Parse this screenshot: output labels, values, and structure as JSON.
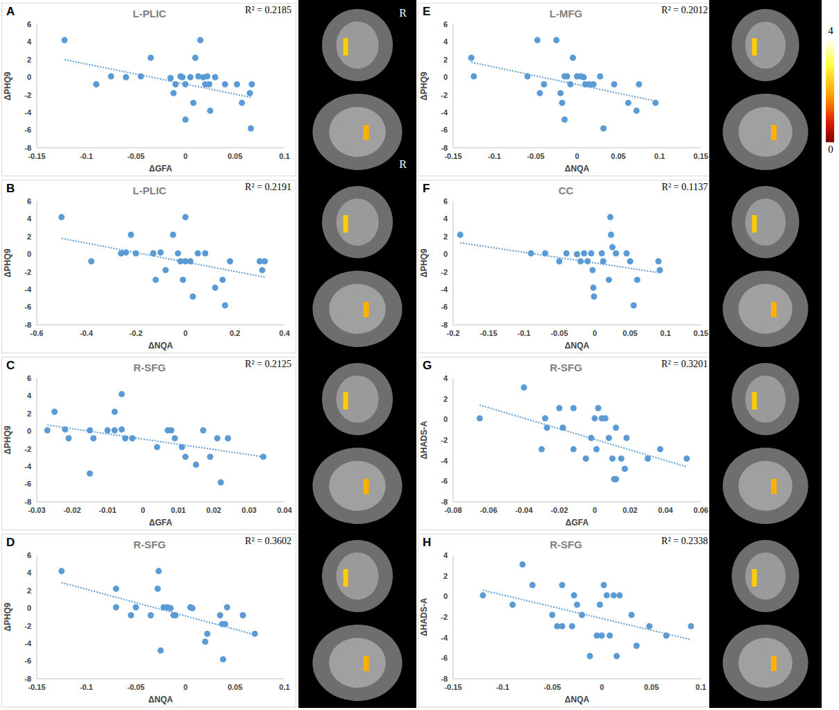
{
  "chart_data": [
    {
      "panel": "A",
      "type": "scatter",
      "title": "L-PLIC",
      "annotation": "R² = 0.2185",
      "xlabel": "ΔGFA",
      "ylabel": "ΔPHQ9",
      "color": "#5b9bd5",
      "x": [
        -0.122,
        -0.09,
        -0.075,
        -0.06,
        -0.045,
        -0.035,
        -0.015,
        -0.012,
        -0.01,
        -0.005,
        -0.003,
        0,
        0,
        0.005,
        0.008,
        0.01,
        0.013,
        0.015,
        0.018,
        0.02,
        0.022,
        0.024,
        0.025,
        0.03,
        0.04,
        0.052,
        0.057,
        0.065,
        0.067,
        0.066
      ],
      "y": [
        4.2,
        -0.8,
        0.1,
        0,
        0.1,
        2.2,
        -0.1,
        -1.8,
        -0.8,
        0.1,
        0,
        -0.8,
        -4.8,
        0,
        -2.9,
        2.2,
        0.1,
        4.2,
        0,
        -0.8,
        0.1,
        -0.8,
        -3.8,
        0,
        -0.8,
        -0.8,
        -2.9,
        -1.8,
        -0.8,
        -5.8
      ],
      "trendline": {
        "x": [
          -0.122,
          0.067
        ],
        "y": [
          2.0,
          -2.3
        ]
      },
      "xlim": [
        -0.15,
        0.1
      ],
      "xticks": [
        -0.15,
        -0.1,
        -0.05,
        0,
        0.05,
        0.1
      ],
      "ylim": [
        -8,
        6
      ],
      "yticks": [
        -8,
        -6,
        -4,
        -2,
        0,
        2,
        4,
        6
      ]
    },
    {
      "panel": "B",
      "type": "scatter",
      "title": "L-PLIC",
      "annotation": "R² = 0.2191",
      "xlabel": "ΔNQA",
      "ylabel": "ΔPHQ9",
      "color": "#5b9bd5",
      "x": [
        -0.5,
        -0.38,
        -0.26,
        -0.24,
        -0.22,
        -0.2,
        -0.13,
        -0.12,
        -0.1,
        -0.08,
        -0.05,
        -0.03,
        -0.02,
        0,
        0,
        -0.01,
        0.02,
        0.03,
        0.05,
        0.08,
        0.12,
        0.15,
        0.16,
        0.18,
        0.3,
        0.31,
        0.32
      ],
      "y": [
        4.2,
        -0.8,
        0.1,
        0.2,
        2.2,
        0.1,
        0.1,
        -2.9,
        0.2,
        -1.8,
        2.2,
        0.1,
        -0.8,
        -0.8,
        4.2,
        -2.9,
        -0.8,
        -4.8,
        0.1,
        0.1,
        -3.8,
        -2.9,
        -5.8,
        -0.8,
        -0.8,
        -1.8,
        -0.8
      ],
      "trendline": {
        "x": [
          -0.5,
          0.32
        ],
        "y": [
          1.8,
          -2.6
        ]
      },
      "xlim": [
        -0.6,
        0.4
      ],
      "xticks": [
        -0.6,
        -0.4,
        -0.2,
        0,
        0.2,
        0.4
      ],
      "ylim": [
        -8,
        6
      ],
      "yticks": [
        -8,
        -6,
        -4,
        -2,
        0,
        2,
        4,
        6
      ]
    },
    {
      "panel": "C",
      "type": "scatter",
      "title": "R-SFG",
      "annotation": "R² = 0.2125",
      "xlabel": "ΔGFA",
      "ylabel": "ΔPHQ9",
      "color": "#5b9bd5",
      "x": [
        -0.027,
        -0.025,
        -0.022,
        -0.021,
        -0.015,
        -0.015,
        -0.014,
        -0.01,
        -0.008,
        -0.008,
        -0.006,
        -0.006,
        -0.005,
        -0.003,
        0.004,
        0.007,
        0.008,
        0.009,
        0.011,
        0.012,
        0.015,
        0.017,
        0.019,
        0.021,
        0.022,
        0.024,
        0.034
      ],
      "y": [
        0.1,
        2.2,
        0.2,
        -0.8,
        0.1,
        -4.8,
        -0.8,
        0.1,
        2.2,
        0.1,
        4.2,
        0.2,
        -0.8,
        -0.8,
        -1.8,
        0.1,
        0.1,
        -0.8,
        -1.8,
        -2.9,
        -3.8,
        0.1,
        -2.9,
        -0.8,
        -5.8,
        -0.8,
        -2.9
      ],
      "trendline": {
        "x": [
          -0.027,
          0.034
        ],
        "y": [
          0.7,
          -2.9
        ]
      },
      "xlim": [
        -0.03,
        0.04
      ],
      "xticks": [
        -0.03,
        -0.02,
        -0.01,
        0,
        0.01,
        0.02,
        0.03,
        0.04
      ],
      "ylim": [
        -8,
        6
      ],
      "yticks": [
        -8,
        -6,
        -4,
        -2,
        0,
        2,
        4,
        6
      ]
    },
    {
      "panel": "D",
      "type": "scatter",
      "title": "R-SFG",
      "annotation": "R² = 0.3602",
      "xlabel": "ΔNQA",
      "ylabel": "ΔPHQ9",
      "color": "#5b9bd5",
      "x": [
        -0.125,
        -0.07,
        -0.07,
        -0.055,
        -0.05,
        -0.035,
        -0.028,
        -0.027,
        -0.025,
        -0.022,
        -0.018,
        -0.015,
        -0.012,
        -0.01,
        0.005,
        0.007,
        0.02,
        0.022,
        0.035,
        0.037,
        0.04,
        0.038,
        0.042,
        0.058,
        0.07
      ],
      "y": [
        4.2,
        2.2,
        0.1,
        -0.8,
        0.1,
        -0.8,
        2.2,
        4.2,
        -4.8,
        0.1,
        0.1,
        0,
        -0.8,
        -0.8,
        0.1,
        0,
        -3.8,
        -2.9,
        -0.8,
        -1.8,
        -1.8,
        -5.8,
        0.1,
        -0.8,
        -2.9
      ],
      "trendline": {
        "x": [
          -0.125,
          0.07
        ],
        "y": [
          2.9,
          -3.0
        ]
      },
      "xlim": [
        -0.15,
        0.1
      ],
      "xticks": [
        -0.15,
        -0.1,
        -0.05,
        0,
        0.05,
        0.1
      ],
      "ylim": [
        -8,
        6
      ],
      "yticks": [
        -8,
        -6,
        -4,
        -2,
        0,
        2,
        4,
        6
      ]
    },
    {
      "panel": "E",
      "type": "scatter",
      "title": "L-MFG",
      "annotation": "R² = 0.2012",
      "xlabel": "ΔNQA",
      "ylabel": "ΔPHQ9",
      "color": "#5b9bd5",
      "x": [
        -0.128,
        -0.125,
        -0.06,
        -0.048,
        -0.045,
        -0.04,
        -0.025,
        -0.02,
        -0.018,
        -0.015,
        -0.012,
        -0.015,
        -0.008,
        -0.005,
        0,
        0.005,
        0.008,
        0.01,
        0.015,
        0.02,
        0.028,
        0.032,
        0.045,
        0.062,
        0.072,
        0.075,
        0.095
      ],
      "y": [
        2.2,
        0.1,
        0.1,
        4.2,
        -1.8,
        -0.8,
        4.2,
        -1.8,
        -2.9,
        0.1,
        0.1,
        -4.8,
        -0.8,
        2.2,
        0.1,
        0.1,
        0,
        -0.8,
        -0.8,
        -0.8,
        0.1,
        -5.8,
        -0.8,
        -2.9,
        -3.8,
        -0.8,
        -2.9
      ],
      "trendline": {
        "x": [
          -0.128,
          0.095
        ],
        "y": [
          1.7,
          -2.7
        ]
      },
      "xlim": [
        -0.15,
        0.15
      ],
      "xticks": [
        -0.15,
        -0.1,
        -0.05,
        0,
        0.05,
        0.1,
        0.15
      ],
      "ylim": [
        -8,
        6
      ],
      "yticks": [
        -8,
        -6,
        -4,
        -2,
        0,
        2,
        4,
        6
      ]
    },
    {
      "panel": "F",
      "type": "scatter",
      "title": "CC",
      "annotation": "R² = 0.1137",
      "xlabel": "ΔNQA",
      "ylabel": "ΔPHQ9",
      "color": "#5b9bd5",
      "x": [
        -0.19,
        -0.09,
        -0.07,
        -0.05,
        -0.04,
        -0.025,
        -0.02,
        -0.015,
        -0.01,
        -0.005,
        -0.003,
        -0.002,
        -0.001,
        0.01,
        0.012,
        0.02,
        0.022,
        0.023,
        0.025,
        0.03,
        0.045,
        0.05,
        0.055,
        0.06,
        0.09,
        0.092
      ],
      "y": [
        2.2,
        0.1,
        0.1,
        -0.8,
        0.1,
        0,
        -0.8,
        0.1,
        -0.8,
        0.1,
        -1.8,
        -3.8,
        -4.8,
        0.1,
        -0.8,
        -2.9,
        4.2,
        2.2,
        0.8,
        0.1,
        0.1,
        -0.8,
        -5.8,
        -2.9,
        -0.8,
        -1.8
      ],
      "trendline": {
        "x": [
          -0.19,
          0.092
        ],
        "y": [
          1.3,
          -2.1
        ]
      },
      "xlim": [
        -0.2,
        0.15
      ],
      "xticks": [
        -0.2,
        -0.15,
        -0.1,
        -0.05,
        0,
        0.05,
        0.1,
        0.15
      ],
      "ylim": [
        -8,
        6
      ],
      "yticks": [
        -8,
        -6,
        -4,
        -2,
        0,
        2,
        4,
        6
      ]
    },
    {
      "panel": "G",
      "type": "scatter",
      "title": "R-SFG",
      "annotation": "R² = 0.3201",
      "xlabel": "ΔGFA",
      "ylabel": "ΔHADS-A",
      "color": "#5b9bd5",
      "x": [
        -0.065,
        -0.04,
        -0.03,
        -0.028,
        -0.027,
        -0.02,
        -0.018,
        -0.012,
        -0.012,
        -0.005,
        -0.002,
        0,
        0.001,
        0.002,
        0.004,
        0.006,
        0.008,
        0.01,
        0.011,
        0.012,
        0.012,
        0.015,
        0.017,
        0.018,
        0.03,
        0.037,
        0.052
      ],
      "y": [
        0.1,
        3.1,
        -2.9,
        0.1,
        -0.8,
        1.1,
        -0.8,
        1.1,
        -2.9,
        -3.8,
        -1.8,
        0.1,
        -2.9,
        1.1,
        0.1,
        0.1,
        -1.8,
        -3.8,
        -5.8,
        -5.8,
        -0.8,
        -3.8,
        -4.8,
        -1.8,
        -3.8,
        -2.9,
        -3.8
      ],
      "trendline": {
        "x": [
          -0.065,
          0.052
        ],
        "y": [
          1.4,
          -4.6
        ]
      },
      "xlim": [
        -0.08,
        0.06
      ],
      "xticks": [
        -0.08,
        -0.06,
        -0.04,
        -0.02,
        0,
        0.02,
        0.04,
        0.06
      ],
      "ylim": [
        -8,
        4
      ],
      "yticks": [
        -8,
        -6,
        -4,
        -2,
        0,
        2,
        4
      ]
    },
    {
      "panel": "H",
      "type": "scatter",
      "title": "R-SFG",
      "annotation": "R² = 0.2338",
      "xlabel": "ΔNQA",
      "ylabel": "ΔHADS-A",
      "color": "#5b9bd5",
      "x": [
        -0.12,
        -0.09,
        -0.08,
        -0.07,
        -0.05,
        -0.045,
        -0.04,
        -0.04,
        -0.03,
        -0.028,
        -0.025,
        -0.02,
        -0.012,
        -0.005,
        0,
        -0.002,
        0.002,
        0.005,
        0.008,
        0.012,
        0.015,
        0.018,
        0.03,
        0.035,
        0.048,
        0.065,
        0.09
      ],
      "y": [
        0.1,
        -0.8,
        3.1,
        1.1,
        -1.8,
        -2.9,
        -2.9,
        1.1,
        -2.9,
        0.1,
        -0.8,
        -1.8,
        -5.8,
        -3.8,
        -3.8,
        -0.8,
        1.1,
        0.1,
        -3.8,
        0.1,
        -5.8,
        0.1,
        -1.8,
        -4.8,
        -2.9,
        -3.8,
        -2.9
      ],
      "trendline": {
        "x": [
          -0.12,
          0.09
        ],
        "y": [
          0.6,
          -4.2
        ]
      },
      "xlim": [
        -0.15,
        0.1
      ],
      "xticks": [
        -0.15,
        -0.1,
        -0.05,
        0,
        0.05,
        0.1
      ],
      "ylim": [
        -8,
        4
      ],
      "yticks": [
        -8,
        -6,
        -4,
        -2,
        0,
        2,
        4
      ]
    }
  ],
  "image_labels": [
    "R",
    "R"
  ],
  "colorbar": {
    "range": [
      0,
      4
    ],
    "ticks": [
      4,
      0
    ]
  }
}
